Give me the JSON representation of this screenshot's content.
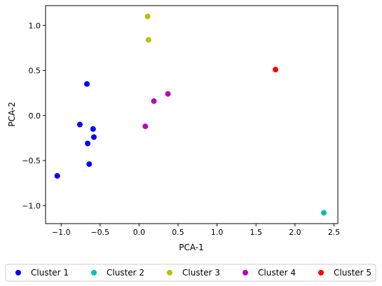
{
  "chart_data": {
    "type": "scatter",
    "title": "",
    "xlabel": "PCA-1",
    "ylabel": "PCA-2",
    "xlim": [
      -1.2,
      2.55
    ],
    "ylim": [
      -1.2,
      1.22
    ],
    "xticks": [
      -1.0,
      -0.5,
      0.0,
      0.5,
      1.0,
      1.5,
      2.0,
      2.5
    ],
    "xtick_labels": [
      "−1.0",
      "−0.5",
      "0.0",
      "0.5",
      "1.0",
      "1.5",
      "2.0",
      "2.5"
    ],
    "yticks": [
      1.0,
      0.5,
      0.0,
      -0.5,
      -1.0
    ],
    "ytick_labels": [
      "1.0",
      "0.5",
      "0.0",
      "−0.5",
      "−1.0"
    ],
    "grid": false,
    "legend_position": "bottom",
    "series": [
      {
        "name": "Cluster 1",
        "color": "#0000ff",
        "points": [
          {
            "x": -0.67,
            "y": 0.35
          },
          {
            "x": -0.76,
            "y": -0.1
          },
          {
            "x": -0.59,
            "y": -0.15
          },
          {
            "x": -0.58,
            "y": -0.24
          },
          {
            "x": -0.66,
            "y": -0.31
          },
          {
            "x": -0.64,
            "y": -0.54
          },
          {
            "x": -1.05,
            "y": -0.67
          }
        ]
      },
      {
        "name": "Cluster 2",
        "color": "#00bfbf",
        "points": [
          {
            "x": 2.37,
            "y": -1.08
          }
        ]
      },
      {
        "name": "Cluster 3",
        "color": "#bfbf00",
        "points": [
          {
            "x": 0.11,
            "y": 1.1
          },
          {
            "x": 0.12,
            "y": 0.84
          }
        ]
      },
      {
        "name": "Cluster 4",
        "color": "#bf00bf",
        "points": [
          {
            "x": 0.37,
            "y": 0.24
          },
          {
            "x": 0.19,
            "y": 0.16
          },
          {
            "x": 0.08,
            "y": -0.12
          }
        ]
      },
      {
        "name": "Cluster 5",
        "color": "#ff0000",
        "points": [
          {
            "x": 1.75,
            "y": 0.51
          }
        ]
      }
    ]
  }
}
